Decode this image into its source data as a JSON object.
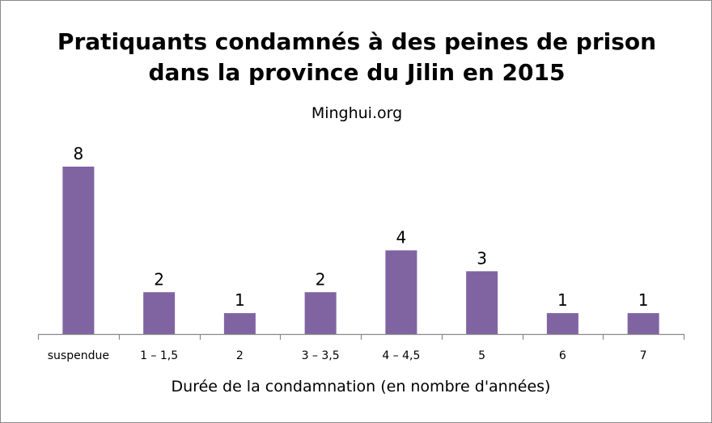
{
  "chart_data": {
    "type": "bar",
    "title": [
      "Pratiquants condamnés à des peines de prison",
      "dans la province du Jilin en 2015"
    ],
    "subtitle": "Minghui.org",
    "xlabel": "Durée de la condamnation (en nombre d'années)",
    "ylabel": "",
    "categories": [
      "suspendue",
      "1 – 1,5",
      "2",
      "3 – 3,5",
      "4 – 4,5",
      "5",
      "6",
      "7"
    ],
    "values": [
      8,
      2,
      1,
      2,
      4,
      3,
      1,
      1
    ],
    "data_labels": true,
    "ylim": [
      0,
      8
    ],
    "grid": false,
    "bar_color": "#8064A2"
  }
}
